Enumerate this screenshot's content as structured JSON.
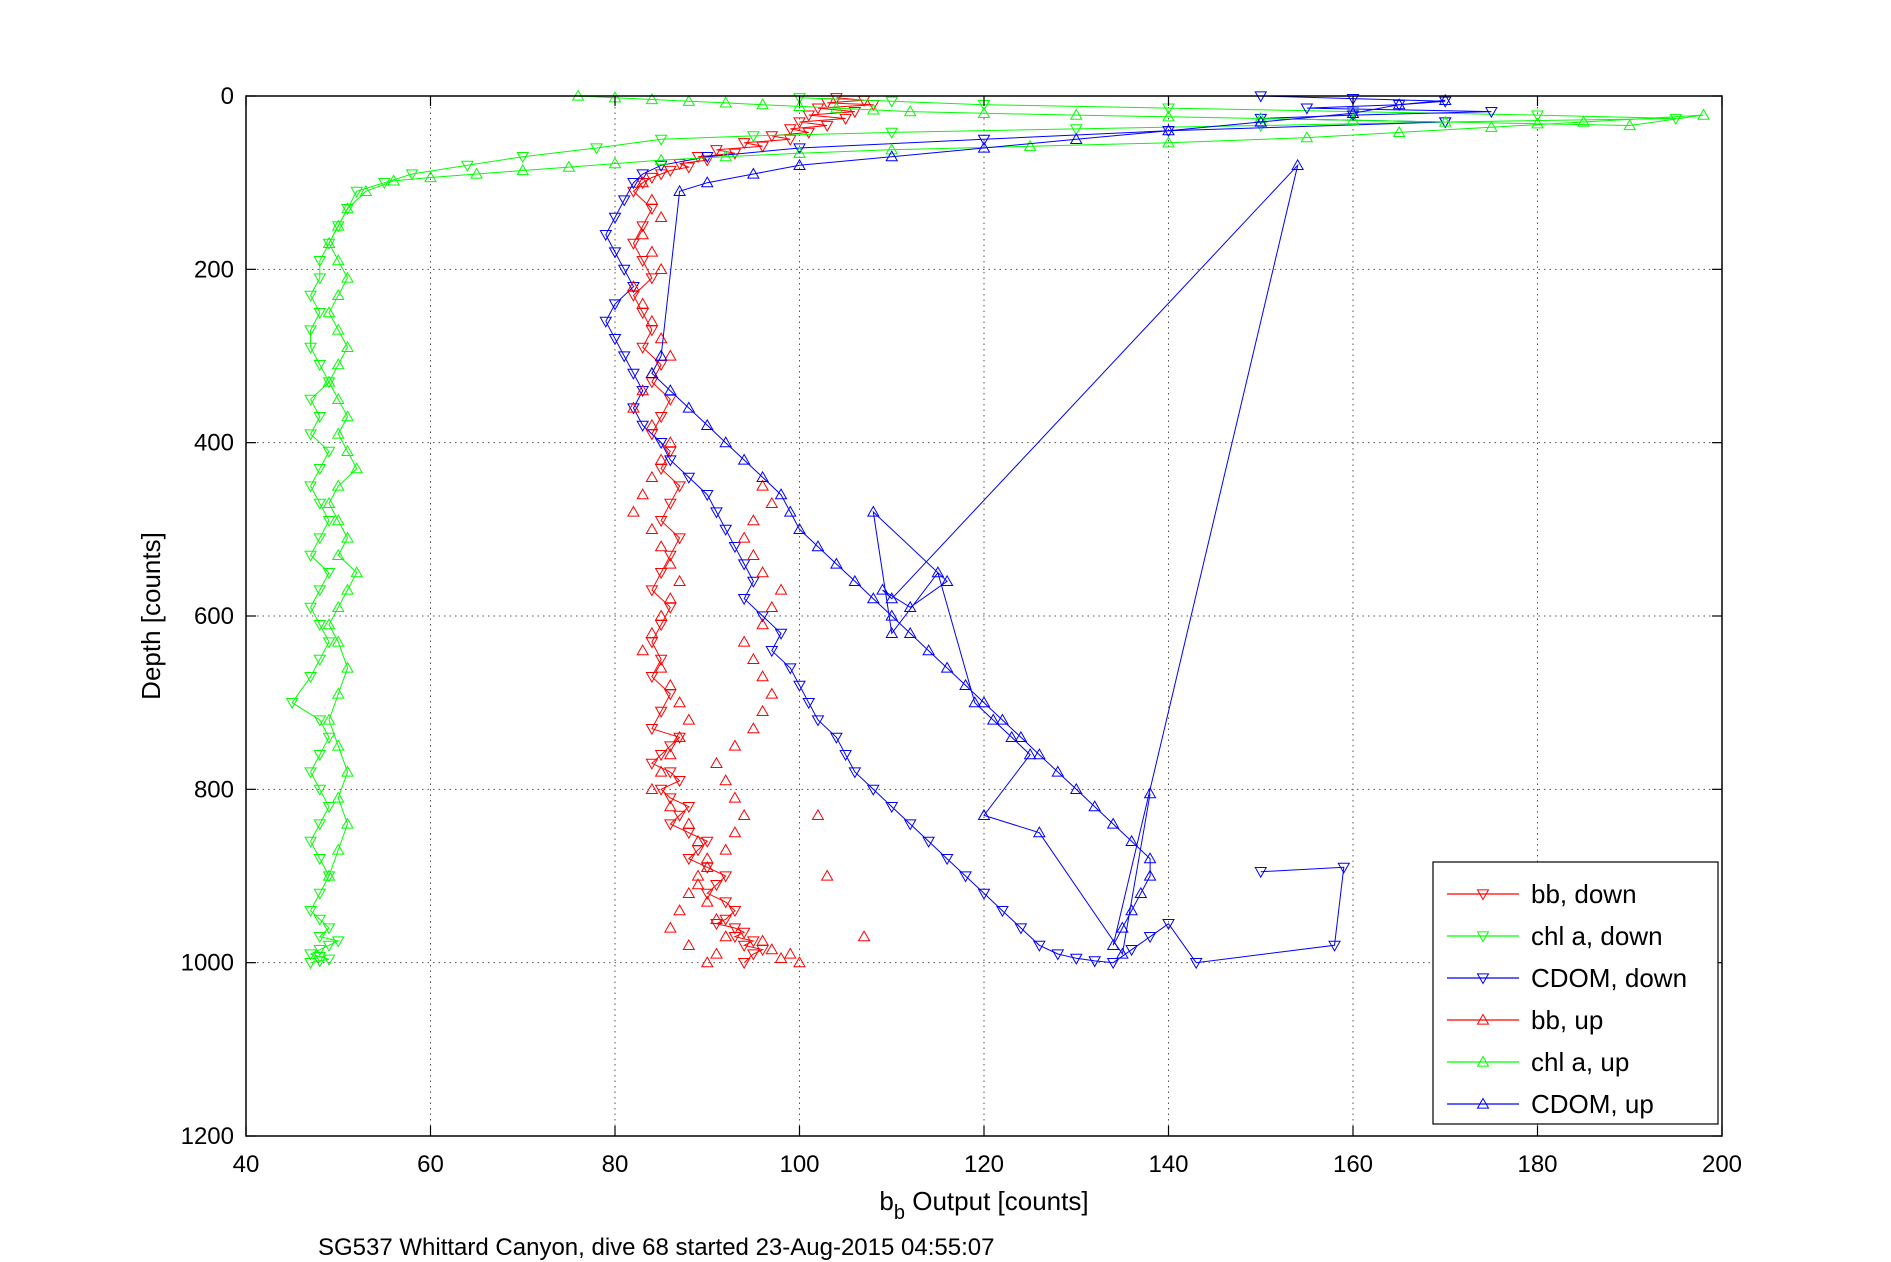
{
  "chart_data": {
    "type": "scatter",
    "title": "",
    "caption": "SG537 Whittard Canyon, dive 68 started 23-Aug-2015 04:55:07",
    "xlabel_main": "b",
    "xlabel_sub": "b",
    "xlabel_rest": " Output [counts]",
    "ylabel": "Depth [counts]",
    "xlim": [
      40,
      200
    ],
    "ylim": [
      1200,
      0
    ],
    "y_reversed": true,
    "x_ticks": [
      "40",
      "60",
      "80",
      "100",
      "120",
      "140",
      "160",
      "180",
      "200"
    ],
    "y_ticks": [
      "0",
      "200",
      "400",
      "600",
      "800",
      "1000",
      "1200"
    ],
    "grid": true,
    "legend_position": "bottom-right",
    "series": [
      {
        "name": "bb, down",
        "color": "#ff0000",
        "marker": "triangle-down",
        "lines": true,
        "x": [
          104,
          107,
          103,
          108,
          102,
          106,
          101,
          105,
          100,
          103,
          99,
          101,
          97,
          99,
          94,
          96,
          91,
          93,
          89,
          90,
          87,
          88,
          86,
          85,
          84,
          83,
          82,
          84,
          83,
          82,
          83,
          84,
          82,
          83,
          84,
          83,
          85,
          84,
          86,
          85,
          84,
          86,
          85,
          87,
          86,
          85,
          87,
          86,
          85,
          84,
          86,
          85,
          84,
          85,
          84,
          86,
          85,
          84,
          87,
          86,
          85,
          84,
          86,
          87,
          85,
          86,
          88,
          87,
          86,
          88,
          90,
          89,
          88,
          90,
          92,
          91,
          90,
          92,
          93,
          92,
          91,
          93,
          94,
          93,
          95,
          94,
          96,
          95,
          94
        ],
        "y": [
          2,
          5,
          8,
          10,
          14,
          18,
          22,
          26,
          30,
          34,
          38,
          42,
          46,
          50,
          54,
          58,
          62,
          66,
          70,
          74,
          78,
          82,
          86,
          90,
          94,
          100,
          110,
          130,
          150,
          170,
          190,
          210,
          230,
          250,
          270,
          290,
          310,
          330,
          350,
          370,
          390,
          410,
          430,
          450,
          470,
          490,
          510,
          530,
          550,
          570,
          590,
          610,
          630,
          650,
          670,
          690,
          710,
          730,
          740,
          750,
          760,
          770,
          780,
          790,
          800,
          810,
          820,
          830,
          840,
          850,
          860,
          870,
          880,
          890,
          900,
          910,
          920,
          930,
          940,
          950,
          955,
          960,
          965,
          970,
          975,
          980,
          985,
          990,
          1000
        ]
      },
      {
        "name": "chl a, down",
        "color": "#00ff00",
        "marker": "triangle-down",
        "lines": true,
        "x": [
          100,
          110,
          120,
          140,
          160,
          180,
          195,
          170,
          150,
          130,
          110,
          95,
          85,
          78,
          70,
          64,
          58,
          55,
          52,
          51,
          50,
          49,
          48,
          48,
          47,
          48,
          47,
          47,
          48,
          49,
          47,
          48,
          47,
          49,
          48,
          47,
          48,
          49,
          48,
          47,
          49,
          48,
          47,
          48,
          49,
          48,
          47,
          45,
          48,
          49,
          48,
          47,
          48,
          49,
          48,
          47,
          48,
          49,
          48,
          47,
          48,
          49,
          48,
          50,
          49,
          48,
          47,
          48,
          49,
          48,
          47
        ],
        "y": [
          2,
          6,
          10,
          14,
          18,
          22,
          26,
          30,
          34,
          38,
          42,
          46,
          50,
          60,
          70,
          80,
          90,
          100,
          110,
          130,
          150,
          170,
          190,
          210,
          230,
          250,
          270,
          290,
          310,
          330,
          350,
          370,
          390,
          410,
          430,
          450,
          470,
          490,
          510,
          530,
          550,
          570,
          590,
          610,
          630,
          650,
          670,
          700,
          720,
          740,
          760,
          780,
          800,
          820,
          840,
          860,
          880,
          900,
          920,
          940,
          950,
          960,
          970,
          975,
          980,
          985,
          990,
          993,
          996,
          998,
          1000
        ]
      },
      {
        "name": "CDOM, down",
        "color": "#0000ff",
        "marker": "triangle-down",
        "lines": true,
        "x": [
          150,
          160,
          170,
          165,
          155,
          175,
          160,
          150,
          170,
          140,
          120,
          100,
          90,
          85,
          83,
          82,
          81,
          80,
          79,
          80,
          81,
          82,
          80,
          79,
          80,
          81,
          82,
          83,
          82,
          83,
          85,
          86,
          88,
          90,
          91,
          92,
          93,
          94,
          95,
          94,
          96,
          98,
          97,
          99,
          100,
          101,
          102,
          104,
          105,
          106,
          108,
          110,
          112,
          114,
          116,
          118,
          120,
          122,
          124,
          126,
          128,
          130,
          132,
          134,
          136,
          138,
          140,
          143,
          158,
          159,
          150
        ],
        "y": [
          0,
          3,
          6,
          10,
          14,
          18,
          22,
          26,
          30,
          40,
          50,
          60,
          70,
          80,
          90,
          100,
          120,
          140,
          160,
          180,
          200,
          220,
          240,
          260,
          280,
          300,
          320,
          340,
          360,
          380,
          400,
          420,
          440,
          460,
          480,
          500,
          520,
          540,
          560,
          580,
          600,
          620,
          640,
          660,
          680,
          700,
          720,
          740,
          760,
          780,
          800,
          820,
          840,
          860,
          880,
          900,
          920,
          940,
          960,
          980,
          990,
          995,
          998,
          1000,
          985,
          970,
          955,
          1000,
          980,
          890,
          895
        ]
      },
      {
        "name": "bb, up",
        "color": "#ff0000",
        "marker": "triangle-up",
        "lines": false,
        "x": [
          83,
          84,
          85,
          83,
          84,
          85,
          82,
          83,
          84,
          85,
          86,
          84,
          83,
          82,
          84,
          86,
          85,
          84,
          83,
          82,
          84,
          85,
          86,
          87,
          86,
          85,
          84,
          83,
          85,
          86,
          87,
          88,
          87,
          86,
          85,
          84,
          86,
          88,
          89,
          90,
          89,
          88,
          87,
          86,
          88,
          90,
          91,
          92,
          91,
          90,
          89,
          90,
          92,
          93,
          94,
          93,
          92,
          91,
          93,
          95,
          96,
          97,
          96,
          95,
          94,
          96,
          97,
          98,
          96,
          95,
          94,
          95,
          97,
          96,
          102,
          103,
          107,
          99,
          98,
          100,
          97,
          96
        ],
        "y": [
          100,
          120,
          140,
          160,
          180,
          200,
          220,
          240,
          260,
          280,
          300,
          320,
          340,
          360,
          380,
          400,
          420,
          440,
          460,
          480,
          500,
          520,
          540,
          560,
          580,
          600,
          620,
          640,
          660,
          680,
          700,
          720,
          740,
          760,
          780,
          800,
          820,
          840,
          860,
          880,
          900,
          920,
          940,
          960,
          980,
          1000,
          990,
          970,
          950,
          930,
          910,
          890,
          870,
          850,
          830,
          810,
          790,
          770,
          750,
          730,
          710,
          690,
          670,
          650,
          630,
          610,
          590,
          570,
          550,
          530,
          510,
          490,
          470,
          450,
          830,
          900,
          970,
          990,
          995,
          1000,
          985,
          975
        ]
      },
      {
        "name": "chl a, up",
        "color": "#00ff00",
        "marker": "triangle-up",
        "lines": true,
        "x": [
          76,
          80,
          84,
          88,
          92,
          96,
          100,
          104,
          108,
          112,
          120,
          130,
          140,
          150,
          160,
          170,
          180,
          190,
          198,
          185,
          175,
          165,
          155,
          140,
          125,
          110,
          100,
          92,
          85,
          80,
          75,
          70,
          65,
          60,
          56,
          53,
          51,
          50,
          49,
          50,
          51,
          50,
          49,
          50,
          51,
          50,
          49,
          50,
          51,
          50,
          51,
          52,
          50,
          49,
          50,
          51,
          50,
          52,
          51,
          50,
          49,
          50,
          51,
          50,
          49,
          50,
          51,
          50,
          51,
          50,
          49
        ],
        "y": [
          0,
          2,
          4,
          6,
          8,
          10,
          12,
          14,
          16,
          18,
          20,
          22,
          24,
          26,
          28,
          30,
          32,
          34,
          22,
          30,
          36,
          42,
          48,
          54,
          58,
          62,
          66,
          70,
          74,
          78,
          82,
          86,
          90,
          94,
          98,
          110,
          130,
          150,
          170,
          190,
          210,
          230,
          250,
          270,
          290,
          310,
          330,
          350,
          370,
          390,
          410,
          430,
          450,
          470,
          490,
          510,
          530,
          550,
          570,
          590,
          610,
          630,
          660,
          690,
          720,
          750,
          780,
          810,
          840,
          870,
          900
        ]
      },
      {
        "name": "CDOM, up",
        "color": "#0000ff",
        "marker": "triangle-up",
        "lines": true,
        "x": [
          170,
          165,
          160,
          150,
          140,
          130,
          120,
          110,
          100,
          95,
          90,
          87,
          85,
          84,
          86,
          88,
          90,
          92,
          94,
          96,
          98,
          99,
          100,
          102,
          104,
          106,
          108,
          110,
          112,
          114,
          116,
          118,
          120,
          122,
          124,
          126,
          128,
          130,
          132,
          134,
          136,
          138,
          138,
          137,
          136,
          135,
          134,
          154,
          110,
          109,
          112,
          116,
          108,
          110,
          115,
          119,
          121,
          123,
          125,
          120,
          126,
          135,
          138
        ],
        "y": [
          5,
          10,
          20,
          30,
          40,
          50,
          60,
          70,
          80,
          90,
          100,
          110,
          300,
          320,
          340,
          360,
          380,
          400,
          420,
          440,
          460,
          480,
          500,
          520,
          540,
          560,
          580,
          600,
          620,
          640,
          660,
          680,
          700,
          720,
          740,
          760,
          780,
          800,
          820,
          840,
          860,
          880,
          900,
          920,
          940,
          960,
          980,
          80,
          580,
          570,
          590,
          560,
          480,
          620,
          550,
          700,
          720,
          740,
          760,
          830,
          850,
          990,
          805
        ]
      }
    ]
  }
}
